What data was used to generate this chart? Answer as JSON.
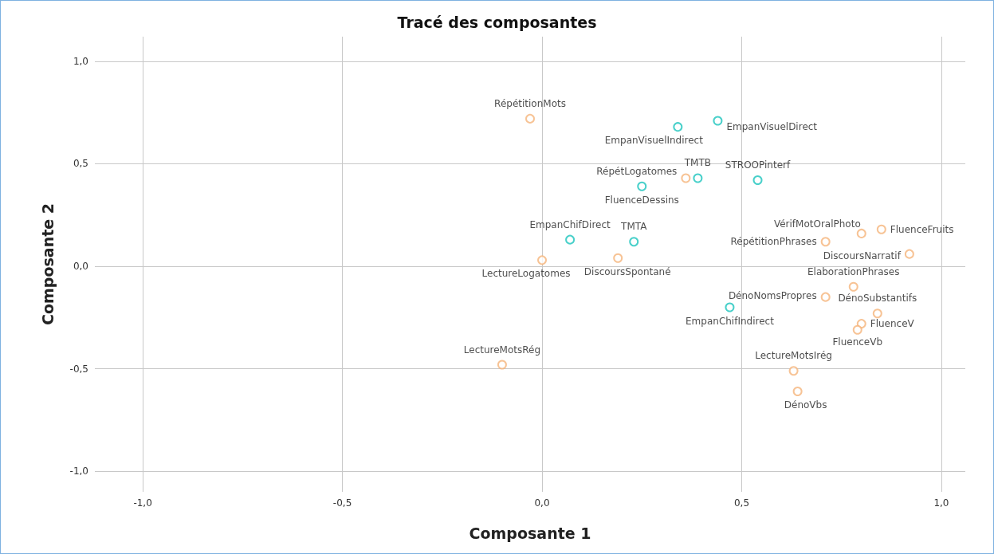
{
  "chart_data": {
    "type": "scatter",
    "title": "Tracé des composantes",
    "xlabel": "Composante 1",
    "ylabel": "Composante 2",
    "xlim": [
      -1.12,
      1.06
    ],
    "ylim": [
      -1.1,
      1.12
    ],
    "xticks": [
      {
        "value": -1,
        "label": "-1,0"
      },
      {
        "value": -0.5,
        "label": "-0,5"
      },
      {
        "value": 0,
        "label": "0,0"
      },
      {
        "value": 0.5,
        "label": "0,5"
      },
      {
        "value": 1,
        "label": "1,0"
      }
    ],
    "yticks": [
      {
        "value": -1,
        "label": "-1,0"
      },
      {
        "value": -0.5,
        "label": "-0,5"
      },
      {
        "value": 0,
        "label": "0,0"
      },
      {
        "value": 0.5,
        "label": "0,5"
      },
      {
        "value": 1,
        "label": "1,0"
      }
    ],
    "grid": true,
    "marker": "circle",
    "series": [
      {
        "color": "#f5b47a",
        "x": [
          -0.03,
          0.36,
          0.0,
          0.19,
          0.8,
          0.85,
          0.71,
          0.92,
          0.78,
          0.71,
          0.84,
          0.8,
          0.79,
          0.63,
          0.64,
          -0.1
        ],
        "values": [
          0.72,
          0.43,
          0.03,
          0.04,
          0.16,
          0.18,
          0.12,
          0.06,
          -0.1,
          -0.15,
          -0.23,
          -0.28,
          -0.31,
          -0.51,
          -0.61,
          -0.48
        ],
        "value_labels": [
          "RépétitionMots",
          "RépétLogatomes",
          "LectureLogatomes",
          "DiscoursSpontané",
          "VérifMotOralPhoto",
          "FluenceFruits",
          "RépétitionPhrases",
          "DiscoursNarratif",
          "ElaborationPhrases",
          "DénoNomsPropres",
          "DénoSubstantifs",
          "FluenceV",
          "FluenceVb",
          "LectureMotsIrég",
          "DénoVbs",
          "LectureMotsRég"
        ]
      },
      {
        "color": "#1cc4bd",
        "x": [
          0.34,
          0.44,
          0.39,
          0.54,
          0.25,
          0.07,
          0.23,
          0.47
        ],
        "values": [
          0.68,
          0.71,
          0.43,
          0.42,
          0.39,
          0.13,
          0.12,
          -0.2
        ],
        "value_labels": [
          "EmpanVisuelIndirect",
          "EmpanVisuelDirect",
          "TMTB",
          "STROOPinterf",
          "FluenceDessins",
          "EmpanChifDirect",
          "TMTA",
          "EmpanChifIndirect"
        ]
      }
    ]
  }
}
